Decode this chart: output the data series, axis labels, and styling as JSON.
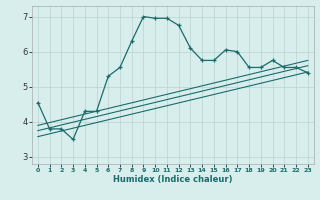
{
  "xlabel": "Humidex (Indice chaleur)",
  "bg_color": "#d8eeed",
  "grid_color": "#b8d4d0",
  "line_color": "#1a6b6b",
  "xlim": [
    -0.5,
    23.5
  ],
  "ylim": [
    2.8,
    7.3
  ],
  "xticks": [
    0,
    1,
    2,
    3,
    4,
    5,
    6,
    7,
    8,
    9,
    10,
    11,
    12,
    13,
    14,
    15,
    16,
    17,
    18,
    19,
    20,
    21,
    22,
    23
  ],
  "yticks": [
    3,
    4,
    5,
    6,
    7
  ],
  "curve_x": [
    0,
    1,
    2,
    3,
    4,
    5,
    6,
    7,
    8,
    9,
    10,
    11,
    12,
    13,
    14,
    15,
    16,
    17,
    18,
    19,
    20,
    21,
    22,
    23
  ],
  "curve_y": [
    4.55,
    3.8,
    3.8,
    3.5,
    4.3,
    4.3,
    5.3,
    5.55,
    6.3,
    7.0,
    6.95,
    6.95,
    6.75,
    6.1,
    5.75,
    5.75,
    6.05,
    6.0,
    5.55,
    5.55,
    5.75,
    5.55,
    5.55,
    5.4
  ],
  "line1_x": [
    0,
    23
  ],
  "line1_y": [
    3.75,
    5.6
  ],
  "line2_x": [
    0,
    23
  ],
  "line2_y": [
    3.9,
    5.75
  ],
  "line3_x": [
    0,
    23
  ],
  "line3_y": [
    3.58,
    5.42
  ]
}
